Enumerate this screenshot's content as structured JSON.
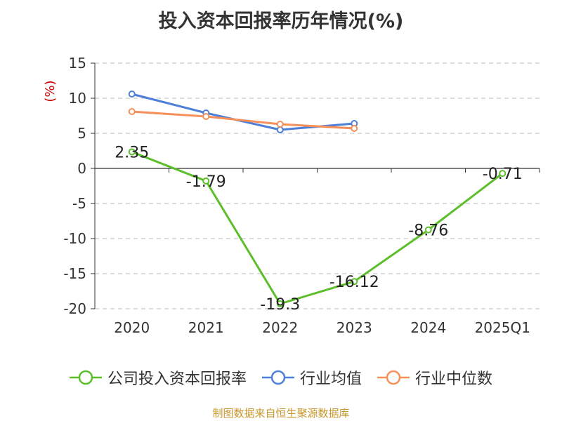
{
  "title": "投入资本回报率历年情况(%)",
  "source": "制图数据来自恒生聚源数据库",
  "colors": {
    "company": "#5cbf2a",
    "industry_avg": "#4e7fd8",
    "industry_median": "#f5905a",
    "axis_label": "#cc0000",
    "grid": "#bbbbbb"
  },
  "chart_data": {
    "type": "line",
    "title": "投入资本回报率历年情况(%)",
    "ylabel": "(%)",
    "xlabel": "",
    "categories": [
      "2020",
      "2021",
      "2022",
      "2023",
      "2024",
      "2025Q1"
    ],
    "ylim": [
      -20,
      15
    ],
    "yticks": [
      15,
      10,
      5,
      0,
      -5,
      -10,
      -15,
      -20
    ],
    "grid": true,
    "legend_position": "bottom",
    "series": [
      {
        "name": "公司投入资本回报率",
        "color_key": "company",
        "values": [
          2.35,
          -1.79,
          -19.3,
          -16.12,
          -8.76,
          -0.71
        ],
        "labels": [
          "2.35",
          "-1.79",
          "-19.3",
          "-16.12",
          "-8.76",
          "-0.71"
        ]
      },
      {
        "name": "行业均值",
        "color_key": "industry_avg",
        "values": [
          10.6,
          7.9,
          5.5,
          6.4,
          null,
          null
        ]
      },
      {
        "name": "行业中位数",
        "color_key": "industry_median",
        "values": [
          8.1,
          7.4,
          6.3,
          5.7,
          null,
          null
        ]
      }
    ]
  }
}
